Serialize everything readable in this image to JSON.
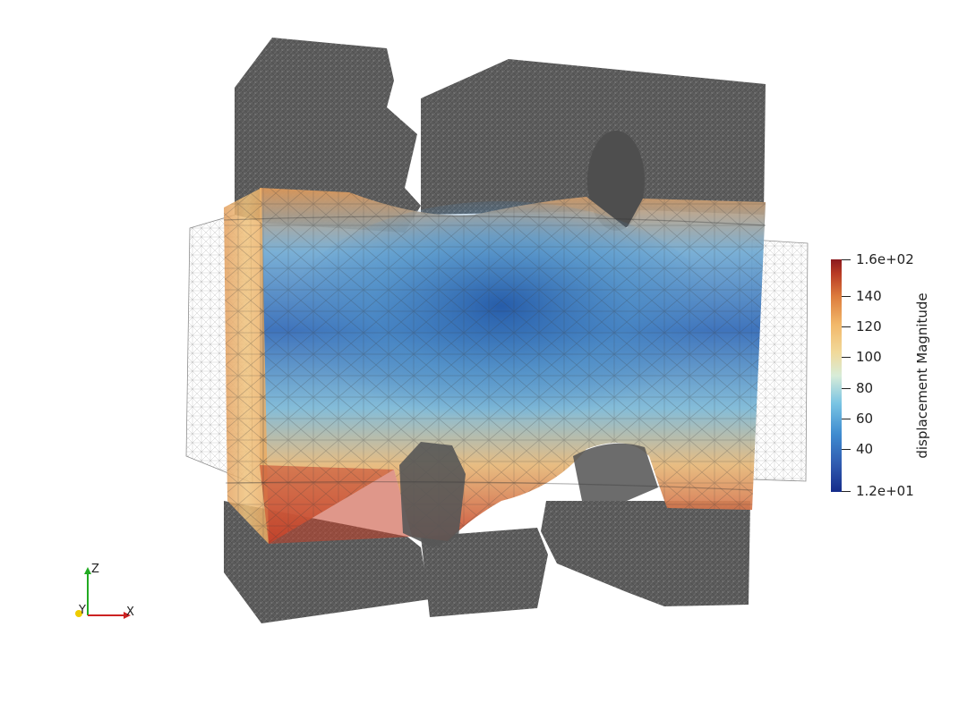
{
  "colorbar": {
    "title": "displacement Magnitude",
    "max_label": "1.6e+02",
    "min_label": "1.2e+01",
    "tick_labels": [
      "140",
      "120",
      "100",
      "80",
      "60",
      "40"
    ],
    "range": [
      12,
      160
    ]
  },
  "axes": {
    "z_label": "Z",
    "y_label": "Y",
    "x_label": "X",
    "x_color": "#cc2222",
    "y_color": "#eecc00",
    "z_color": "#22aa22"
  },
  "colors": {
    "specimen_gray": "#5c5c5c",
    "wireframe": "#9a9a9a",
    "background": "#ffffff"
  }
}
